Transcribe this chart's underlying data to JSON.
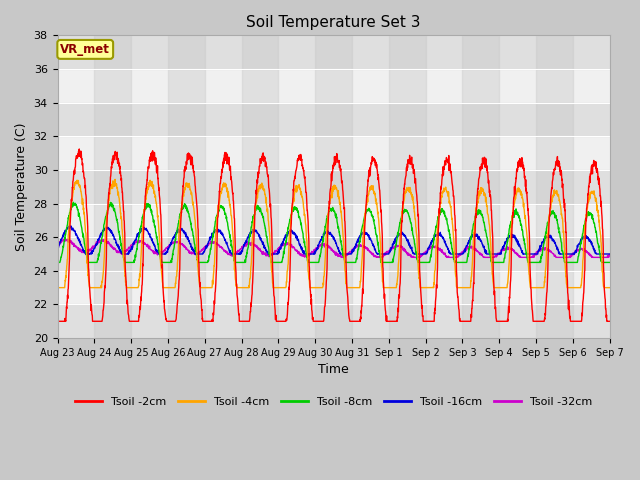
{
  "title": "Soil Temperature Set 3",
  "xlabel": "Time",
  "ylabel": "Soil Temperature (C)",
  "ylim": [
    20,
    38
  ],
  "yticks": [
    20,
    22,
    24,
    26,
    28,
    30,
    32,
    34,
    36,
    38
  ],
  "plot_bg_color": "#f0f0f0",
  "fig_bg_color": "#c8c8c8",
  "annotation_text": "VR_met",
  "annotation_box_color": "#ffff99",
  "annotation_text_color": "#8b0000",
  "series_colors": {
    "Tsoil -2cm": "#ff0000",
    "Tsoil -4cm": "#ffa500",
    "Tsoil -8cm": "#00cc00",
    "Tsoil -16cm": "#0000dd",
    "Tsoil -32cm": "#cc00cc"
  },
  "x_tick_labels": [
    "Aug 23",
    "Aug 24",
    "Aug 25",
    "Aug 26",
    "Aug 27",
    "Aug 28",
    "Aug 29",
    "Aug 30",
    "Aug 31",
    "Sep 1",
    "Sep 2",
    "Sep 3",
    "Sep 4",
    "Sep 5",
    "Sep 6",
    "Sep 7"
  ],
  "num_days": 15,
  "samples_per_day": 144
}
